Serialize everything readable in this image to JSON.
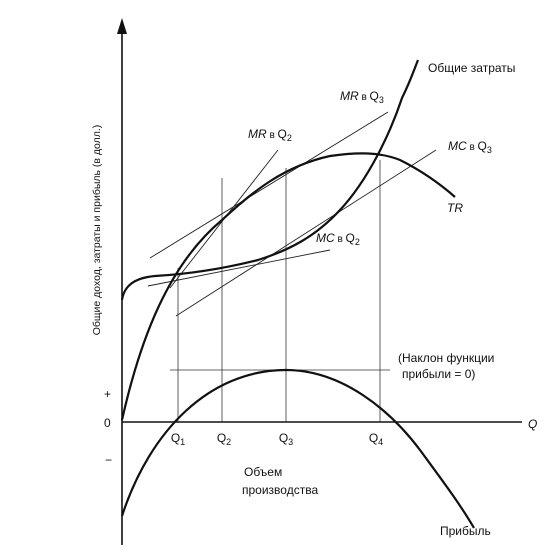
{
  "axes": {
    "y_label": "Общие доход, затраты и прибыль (в долл.)",
    "x_label": "Q",
    "origin_label": "0",
    "plus_label": "+",
    "minus_label": "−"
  },
  "q_ticks": [
    {
      "id": "q1",
      "label": "Q",
      "sub": "1"
    },
    {
      "id": "q2",
      "label": "Q",
      "sub": "2"
    },
    {
      "id": "q3",
      "label": "Q",
      "sub": "3"
    },
    {
      "id": "q4",
      "label": "Q",
      "sub": "4"
    }
  ],
  "curves": {
    "total_cost": "Общие затраты",
    "total_revenue": "TR",
    "profit": "Прибыль"
  },
  "tangents": {
    "mr_q3": {
      "main": "MR",
      "mid": " в ",
      "q": "Q",
      "sub": "3"
    },
    "mr_q2": {
      "main": "MR",
      "mid": " в ",
      "q": "Q",
      "sub": "2"
    },
    "mc_q3": {
      "main": "MC",
      "mid": " в ",
      "q": "Q",
      "sub": "3"
    },
    "mc_q2": {
      "main": "MC",
      "mid": " в ",
      "q": "Q",
      "sub": "2"
    }
  },
  "annotations": {
    "profit_slope_line1": "(Наклон функции",
    "profit_slope_line2": "прибыли = 0)",
    "output_line1": "Объем",
    "output_line2": "производства"
  }
}
